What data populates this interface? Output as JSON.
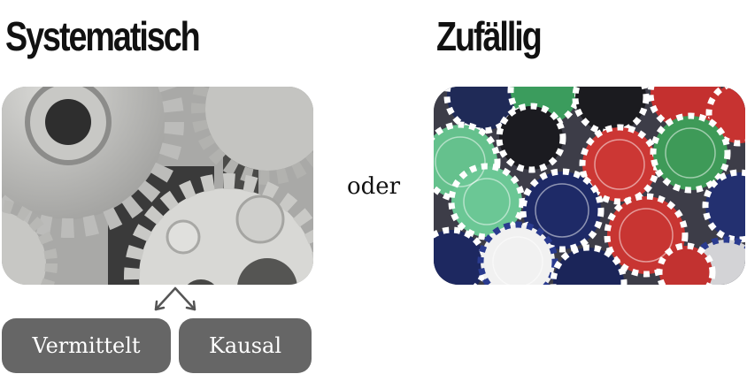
{
  "left": {
    "heading": "Systematisch",
    "photo_subject": "metal gears"
  },
  "connector": "oder",
  "right": {
    "heading": "Zufällig",
    "photo_subject": "casino poker chips"
  },
  "branches": [
    {
      "label": "Vermittelt"
    },
    {
      "label": "Kausal"
    }
  ],
  "colors": {
    "pill_bg": "#666666",
    "pill_text": "#ffffff",
    "heading": "#111111"
  }
}
